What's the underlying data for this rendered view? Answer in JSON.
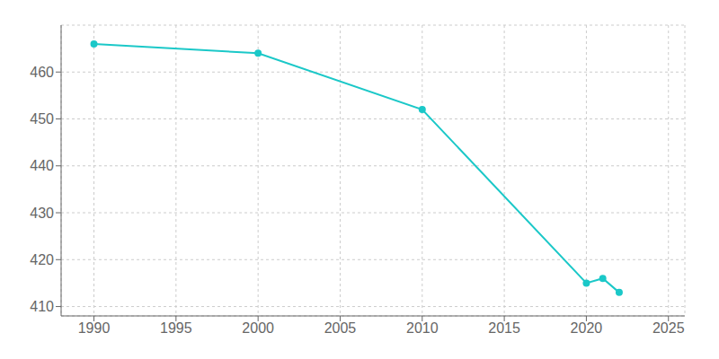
{
  "chart_data": {
    "type": "line",
    "x": [
      1990,
      2000,
      2010,
      2020,
      2021,
      2022
    ],
    "values": [
      466,
      464,
      452,
      415,
      416,
      413
    ],
    "color": "#1bc8c8",
    "marker": "circle",
    "xlim": [
      1988,
      2026
    ],
    "ylim": [
      408,
      470
    ],
    "xticks": [
      1990,
      1995,
      2000,
      2005,
      2010,
      2015,
      2020,
      2025
    ],
    "yticks": [
      410,
      420,
      430,
      440,
      450,
      460
    ],
    "grid": true
  }
}
